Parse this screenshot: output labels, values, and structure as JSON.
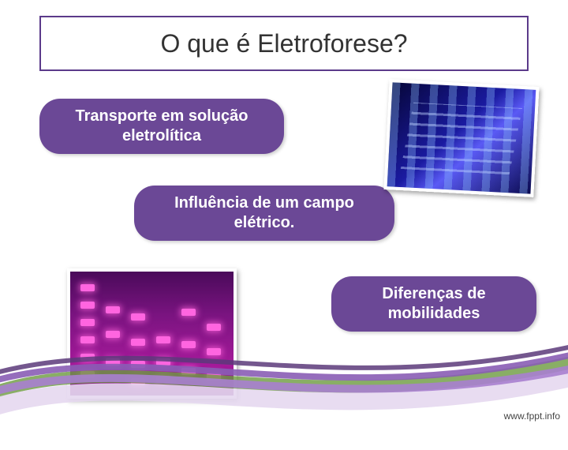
{
  "title": "O que é Eletroforese?",
  "bubbles": {
    "b1": "Transporte em solução\neletrolítica",
    "b2": "Influência de um campo\nelétrico.",
    "b3": "Diferenças de\nmobilidades"
  },
  "footer": "www.fppt.info",
  "colors": {
    "bubble_bg": "#6b4896",
    "bubble_text": "#ffffff",
    "title_border": "#5b3a8a",
    "title_text": "#333333",
    "swoosh": [
      "#6b9a3f",
      "#e6d8f0",
      "#a97fcf",
      "#8a5db5",
      "#5c3a7a"
    ]
  },
  "gel_bl": {
    "lanes": [
      {
        "lane": 1,
        "bands_top_pct": [
          10,
          24,
          38,
          52,
          66,
          80
        ]
      },
      {
        "lane": 2,
        "bands_top_pct": [
          28,
          48,
          70
        ]
      },
      {
        "lane": 3,
        "bands_top_pct": [
          34,
          54,
          72,
          86
        ]
      },
      {
        "lane": 4,
        "bands_top_pct": [
          52,
          70,
          84
        ]
      },
      {
        "lane": 5,
        "bands_top_pct": [
          30,
          56,
          78
        ]
      },
      {
        "lane": 6,
        "bands_top_pct": [
          42,
          62,
          82
        ]
      }
    ],
    "band_color": "#ff65e0",
    "bg_gradient": [
      "#4a0a5a",
      "#a51a9a"
    ]
  }
}
